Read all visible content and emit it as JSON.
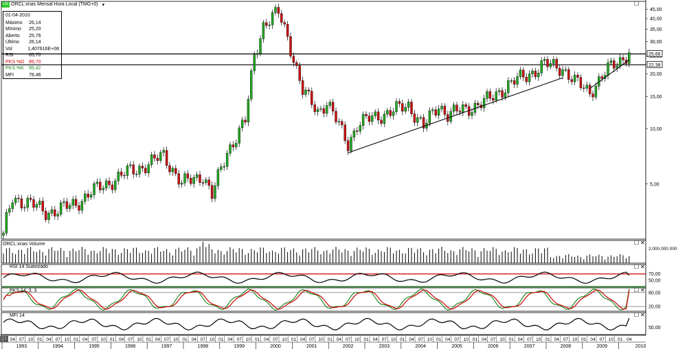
{
  "header": {
    "badge": "US",
    "title": "ORCL:xnas Mensal Hora Local (TMG+0)",
    "dropdown_icon": "chevron-down-icon"
  },
  "info_box": {
    "date": "01-04-2010",
    "rows": [
      {
        "k": "Máximo",
        "v": "26,14",
        "color": "#000000"
      },
      {
        "k": "Mínimo",
        "v": "25,20",
        "color": "#000000"
      },
      {
        "k": "Aberto",
        "v": "25,76",
        "color": "#000000"
      },
      {
        "k": "Último",
        "v": "26,14",
        "color": "#000000"
      },
      {
        "k": "Vol",
        "v": "1,407616E+08",
        "color": "#000000"
      },
      {
        "k": "RSI",
        "v": "65,70",
        "color": "#000000"
      },
      {
        "k": "PKS %D",
        "v": "89,70",
        "color": "#cc0000"
      },
      {
        "k": "PKS %K",
        "v": "95,42",
        "color": "#228822"
      },
      {
        "k": "MFI",
        "v": "78,46",
        "color": "#000000"
      }
    ]
  },
  "panels": {
    "volume_title": "ORCL:xnas Volume",
    "rsi_title": "RSI 14 Suavizado",
    "pks_title": "PKS 14, 3, 3",
    "mfi_title": "MFI 14"
  },
  "price_axis": {
    "ticks": [
      "45,00",
      "40,00",
      "35,00",
      "30,00",
      "25,00",
      "20,00",
      "15,00",
      "10,00",
      "5,00"
    ],
    "tick_values": [
      45,
      40,
      35,
      30,
      25,
      20,
      15,
      10,
      5
    ],
    "highlight_labels": [
      "25,66",
      "22,38"
    ]
  },
  "volume_axis": {
    "tick": "2.000.000.000"
  },
  "rsi_axis": {
    "ticks": [
      "70,00",
      "50,00"
    ]
  },
  "pks_axis": {
    "ticks": [
      "80,00",
      "20,00"
    ]
  },
  "mfi_axis": {
    "ticks": [
      "50,00"
    ]
  },
  "time_axis": {
    "first_label": "92",
    "month_labels": [
      "01",
      "04",
      "07",
      "10"
    ],
    "years": [
      "1993",
      "1994",
      "1995",
      "1996",
      "1997",
      "1998",
      "1999",
      "2000",
      "2001",
      "2002",
      "2003",
      "2004",
      "2005",
      "2006",
      "2007",
      "2008",
      "2009",
      "2010"
    ],
    "last_months": [
      "01",
      "04"
    ]
  },
  "colors": {
    "up": "#22aa22",
    "down": "#cc1111",
    "rsi_band": "#cc0000",
    "pks_d": "#cc0000",
    "pks_k": "#228822"
  },
  "chart_data": {
    "type": "candlestick",
    "title": "ORCL:xnas Mensal Hora Local (TMG+0)",
    "scale": "log",
    "ylim": [
      2.5,
      48
    ],
    "grid": false,
    "x_start": "1993-01",
    "x_end": "2010-04",
    "horizontal_lines": [
      25.66,
      22.38
    ],
    "trend_lines": [
      {
        "from": [
          "2002-07",
          7.4
        ],
        "to": [
          "2008-06",
          19.0
        ]
      },
      {
        "from": [
          "2009-03",
          16.6
        ],
        "to": [
          "2010-04",
          23.8
        ]
      }
    ],
    "anchors": [
      {
        "x": "1993-01",
        "y": 2.7
      },
      {
        "x": "1993-04",
        "y": 4.2
      },
      {
        "x": "1993-10",
        "y": 3.9
      },
      {
        "x": "1994-03",
        "y": 3.5
      },
      {
        "x": "1994-07",
        "y": 3.6
      },
      {
        "x": "1995-01",
        "y": 3.9
      },
      {
        "x": "1995-06",
        "y": 4.5
      },
      {
        "x": "1996-01",
        "y": 5.2
      },
      {
        "x": "1996-06",
        "y": 5.8
      },
      {
        "x": "1997-01",
        "y": 6.4
      },
      {
        "x": "1997-06",
        "y": 7.2
      },
      {
        "x": "1997-12",
        "y": 5.0
      },
      {
        "x": "1998-07",
        "y": 5.6
      },
      {
        "x": "1998-10",
        "y": 4.3
      },
      {
        "x": "1999-03",
        "y": 7.5
      },
      {
        "x": "1999-09",
        "y": 11.0
      },
      {
        "x": "1999-12",
        "y": 25.0
      },
      {
        "x": "2000-03",
        "y": 37.0
      },
      {
        "x": "2000-08",
        "y": 43.0
      },
      {
        "x": "2000-11",
        "y": 32.0
      },
      {
        "x": "2001-04",
        "y": 16.0
      },
      {
        "x": "2001-09",
        "y": 12.5
      },
      {
        "x": "2001-12",
        "y": 14.0
      },
      {
        "x": "2002-07",
        "y": 8.3
      },
      {
        "x": "2002-10",
        "y": 10.5
      },
      {
        "x": "2003-03",
        "y": 11.5
      },
      {
        "x": "2003-10",
        "y": 12.5
      },
      {
        "x": "2004-03",
        "y": 13.5
      },
      {
        "x": "2004-08",
        "y": 10.2
      },
      {
        "x": "2005-01",
        "y": 13.5
      },
      {
        "x": "2005-04",
        "y": 12.0
      },
      {
        "x": "2005-10",
        "y": 12.8
      },
      {
        "x": "2006-06",
        "y": 14.5
      },
      {
        "x": "2006-12",
        "y": 17.5
      },
      {
        "x": "2007-06",
        "y": 19.5
      },
      {
        "x": "2007-12",
        "y": 22.5
      },
      {
        "x": "2008-06",
        "y": 21.5
      },
      {
        "x": "2008-10",
        "y": 18.0
      },
      {
        "x": "2009-03",
        "y": 16.0
      },
      {
        "x": "2009-09",
        "y": 21.0
      },
      {
        "x": "2010-04",
        "y": 26.1
      }
    ]
  }
}
